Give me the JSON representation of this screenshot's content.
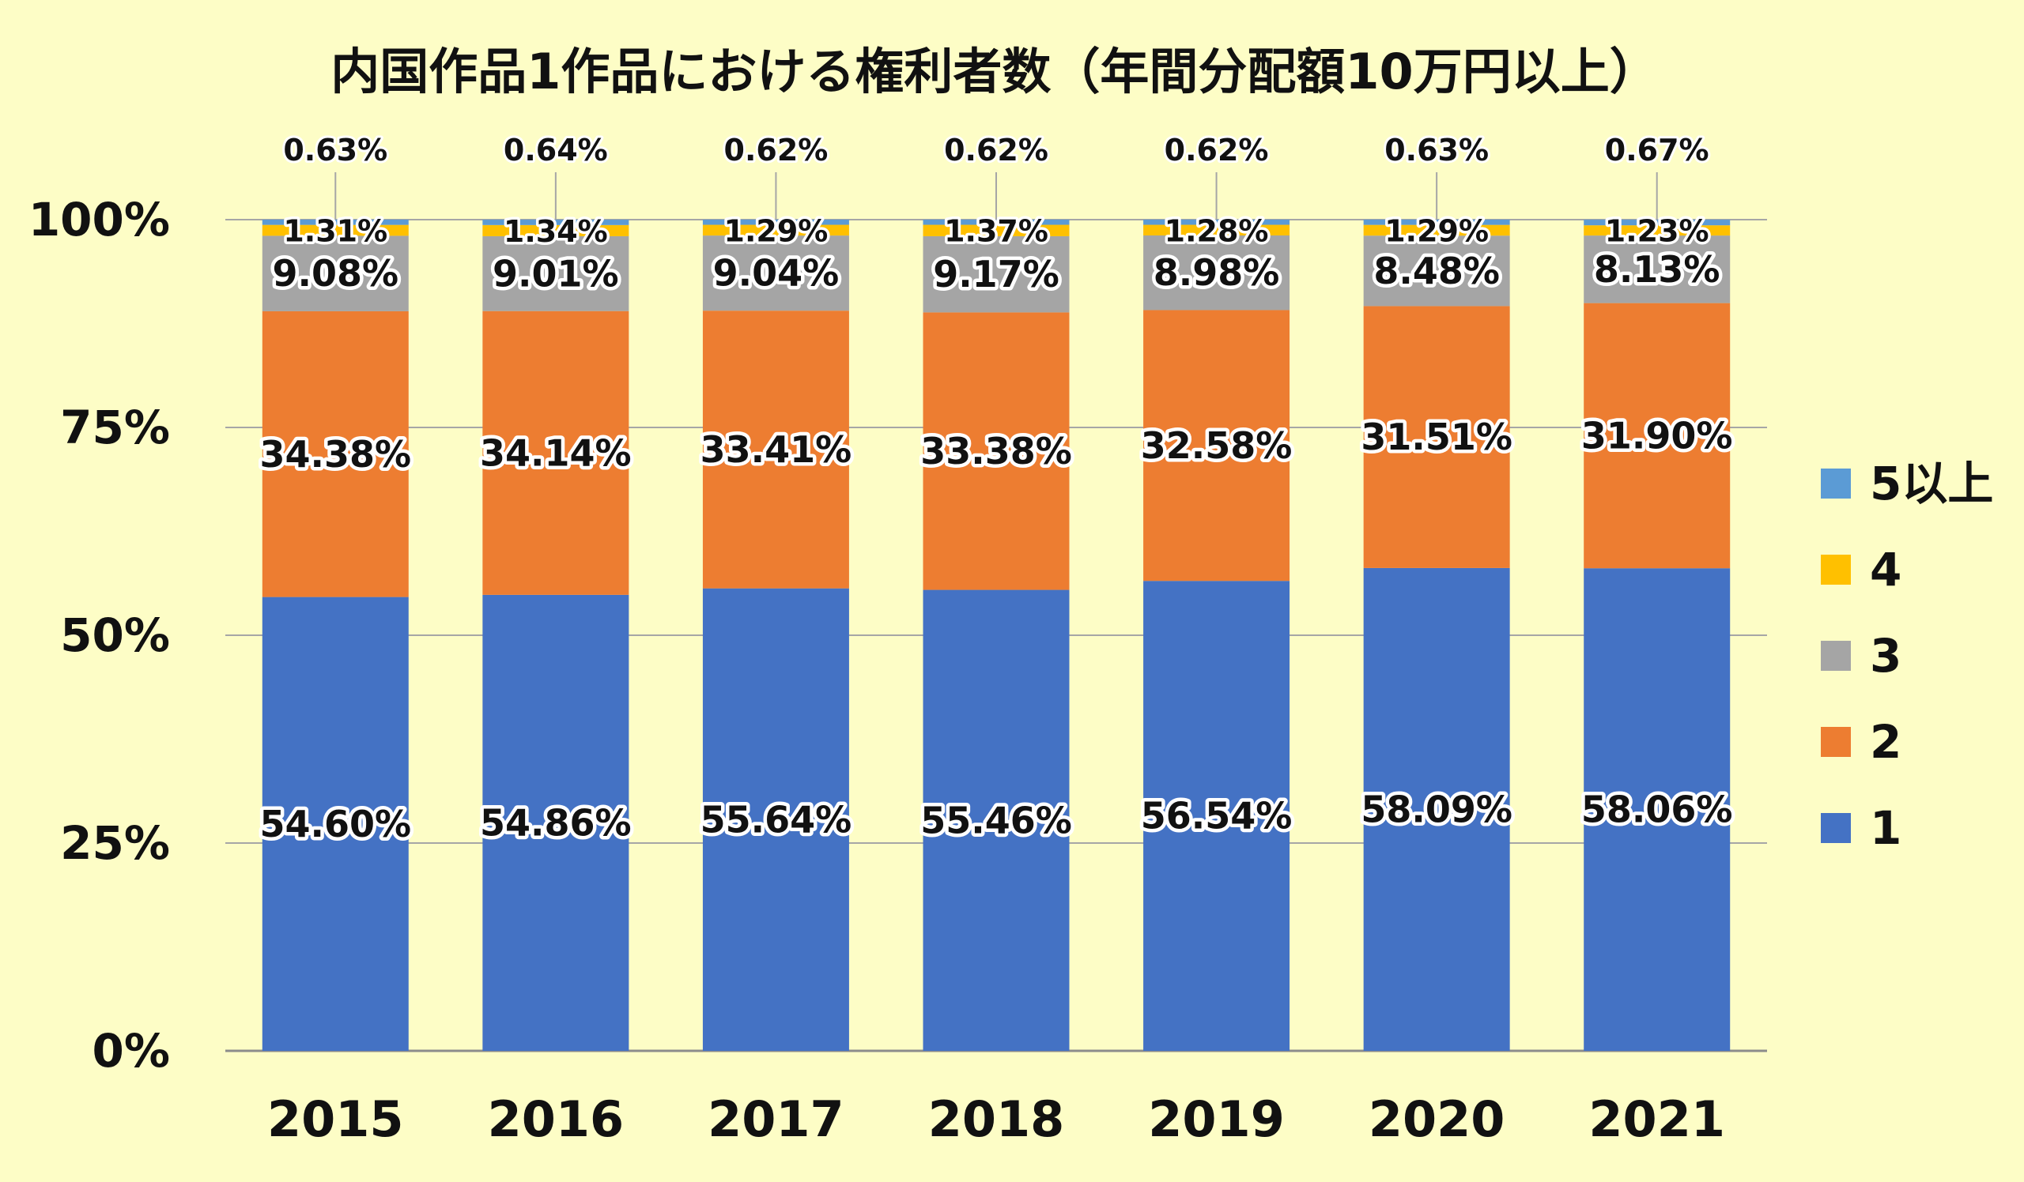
{
  "chart_data": {
    "type": "bar",
    "stacked": true,
    "title": "内国作品1作品における権利者数（年間分配額10万円以上）",
    "categories": [
      "2015",
      "2016",
      "2017",
      "2018",
      "2019",
      "2020",
      "2021"
    ],
    "y_ticks": [
      "0%",
      "25%",
      "50%",
      "75%",
      "100%"
    ],
    "ylim": [
      0,
      100
    ],
    "legend_position": "right",
    "series": [
      {
        "name": "1",
        "color": "#4472c4",
        "values": [
          54.6,
          54.86,
          55.64,
          55.46,
          56.54,
          58.09,
          58.06
        ],
        "labels": [
          "54.60%",
          "54.86%",
          "55.64%",
          "55.46%",
          "56.54%",
          "58.09%",
          "58.06%"
        ]
      },
      {
        "name": "2",
        "color": "#ed7d31",
        "values": [
          34.38,
          34.14,
          33.41,
          33.38,
          32.58,
          31.51,
          31.9
        ],
        "labels": [
          "34.38%",
          "34.14%",
          "33.41%",
          "33.38%",
          "32.58%",
          "31.51%",
          "31.90%"
        ]
      },
      {
        "name": "3",
        "color": "#a5a5a5",
        "values": [
          9.08,
          9.01,
          9.04,
          9.17,
          8.98,
          8.48,
          8.13
        ],
        "labels": [
          "9.08%",
          "9.01%",
          "9.04%",
          "9.17%",
          "8.98%",
          "8.48%",
          "8.13%"
        ]
      },
      {
        "name": "4",
        "color": "#ffc000",
        "values": [
          1.31,
          1.34,
          1.29,
          1.37,
          1.28,
          1.29,
          1.23
        ],
        "labels": [
          "1.31%",
          "1.34%",
          "1.29%",
          "1.37%",
          "1.28%",
          "1.29%",
          "1.23%"
        ]
      },
      {
        "name": "5以上",
        "color": "#5b9bd5",
        "values": [
          0.63,
          0.64,
          0.62,
          0.62,
          0.62,
          0.63,
          0.67
        ],
        "labels": [
          "0.63%",
          "0.64%",
          "0.62%",
          "0.62%",
          "0.62%",
          "0.63%",
          "0.67%"
        ]
      }
    ],
    "legend_order": [
      "5以上",
      "4",
      "3",
      "2",
      "1"
    ]
  }
}
